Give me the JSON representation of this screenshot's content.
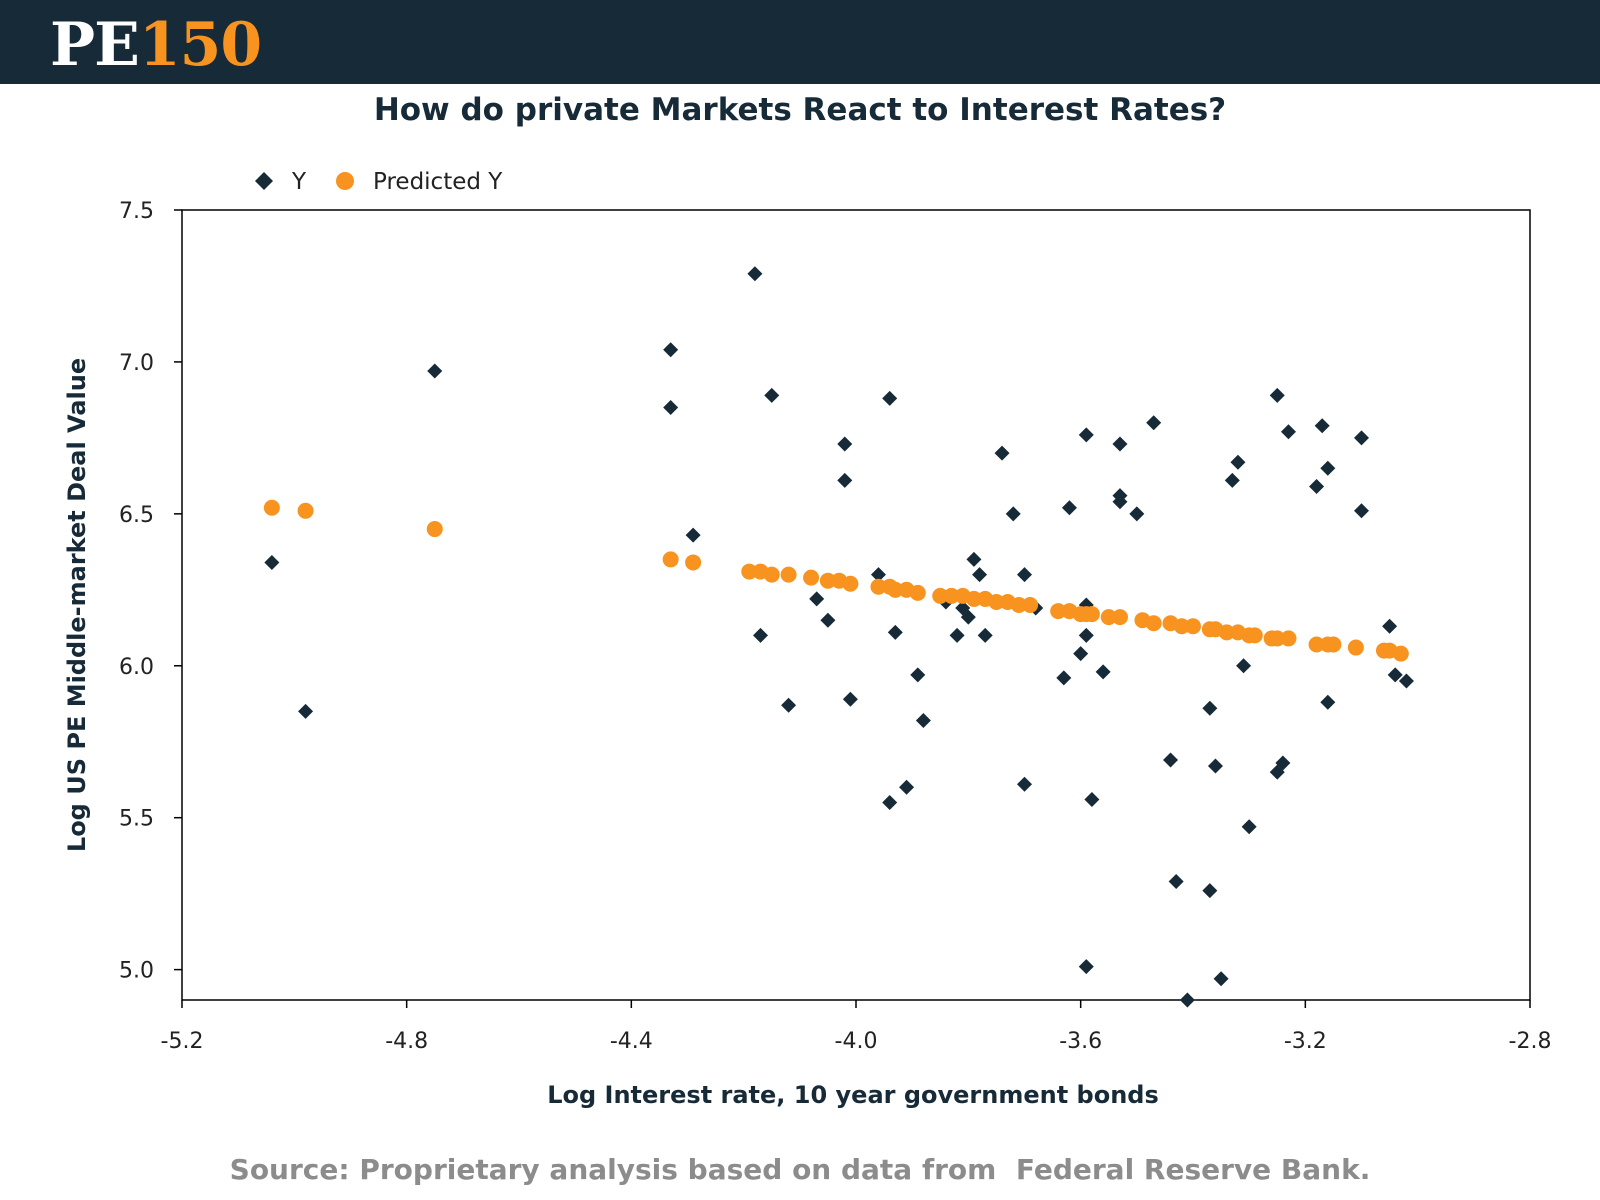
{
  "header": {
    "logo_pe": "PE",
    "logo_num": "150",
    "brand_color": "#172a38",
    "accent_color": "#f7931e"
  },
  "title": "How do private Markets React to Interest Rates?",
  "source": "Source: Proprietary analysis based on data from  Federal Reserve Bank.",
  "chart_data": {
    "type": "scatter",
    "xlabel": "Log Interest rate, 10 year government bonds",
    "ylabel": "Log US PE Middle-market Deal Value",
    "xlim": [
      -5.2,
      -2.8
    ],
    "ylim": [
      4.9,
      7.5
    ],
    "x_ticks": [
      "-5.2",
      "-4.8",
      "-4.4",
      "-4.0",
      "-3.6",
      "-3.2",
      "-2.8"
    ],
    "y_ticks": [
      "5.0",
      "5.5",
      "6.0",
      "6.5",
      "7.0",
      "7.5"
    ],
    "legend_position": "top-left",
    "grid": false,
    "series": [
      {
        "name": "Y",
        "marker": "diamond",
        "color": "#172a38",
        "points": [
          [
            -5.04,
            6.34
          ],
          [
            -4.98,
            5.85
          ],
          [
            -4.75,
            6.97
          ],
          [
            -4.33,
            7.04
          ],
          [
            -4.33,
            6.85
          ],
          [
            -4.29,
            6.43
          ],
          [
            -4.18,
            7.29
          ],
          [
            -4.15,
            6.89
          ],
          [
            -4.17,
            6.1
          ],
          [
            -4.12,
            5.87
          ],
          [
            -4.07,
            6.22
          ],
          [
            -4.05,
            6.15
          ],
          [
            -4.02,
            6.73
          ],
          [
            -4.02,
            6.61
          ],
          [
            -4.01,
            5.89
          ],
          [
            -3.94,
            6.88
          ],
          [
            -3.96,
            6.3
          ],
          [
            -3.93,
            6.11
          ],
          [
            -3.94,
            5.55
          ],
          [
            -3.91,
            5.6
          ],
          [
            -3.89,
            5.97
          ],
          [
            -3.88,
            5.82
          ],
          [
            -3.84,
            6.21
          ],
          [
            -3.82,
            6.1
          ],
          [
            -3.81,
            6.19
          ],
          [
            -3.8,
            6.16
          ],
          [
            -3.79,
            6.35
          ],
          [
            -3.78,
            6.3
          ],
          [
            -3.77,
            6.1
          ],
          [
            -3.74,
            6.7
          ],
          [
            -3.72,
            6.5
          ],
          [
            -3.7,
            6.3
          ],
          [
            -3.7,
            5.61
          ],
          [
            -3.68,
            6.19
          ],
          [
            -3.62,
            6.52
          ],
          [
            -3.63,
            5.96
          ],
          [
            -3.59,
            6.2
          ],
          [
            -3.59,
            6.76
          ],
          [
            -3.59,
            6.1
          ],
          [
            -3.6,
            6.04
          ],
          [
            -3.59,
            5.01
          ],
          [
            -3.58,
            5.56
          ],
          [
            -3.56,
            5.98
          ],
          [
            -3.53,
            6.73
          ],
          [
            -3.53,
            6.56
          ],
          [
            -3.53,
            6.54
          ],
          [
            -3.5,
            6.5
          ],
          [
            -3.47,
            6.8
          ],
          [
            -3.44,
            5.69
          ],
          [
            -3.43,
            5.29
          ],
          [
            -3.41,
            4.9
          ],
          [
            -3.37,
            5.86
          ],
          [
            -3.36,
            5.67
          ],
          [
            -3.35,
            4.97
          ],
          [
            -3.37,
            5.26
          ],
          [
            -3.33,
            6.61
          ],
          [
            -3.32,
            6.67
          ],
          [
            -3.31,
            6.0
          ],
          [
            -3.3,
            5.47
          ],
          [
            -3.25,
            6.89
          ],
          [
            -3.25,
            5.65
          ],
          [
            -3.24,
            5.68
          ],
          [
            -3.23,
            6.77
          ],
          [
            -3.18,
            6.59
          ],
          [
            -3.17,
            6.79
          ],
          [
            -3.16,
            6.65
          ],
          [
            -3.16,
            5.88
          ],
          [
            -3.1,
            6.75
          ],
          [
            -3.1,
            6.51
          ],
          [
            -3.05,
            6.13
          ],
          [
            -3.04,
            5.97
          ],
          [
            -3.02,
            5.95
          ]
        ]
      },
      {
        "name": "Predicted Y",
        "marker": "circle",
        "color": "#f7931e",
        "points": [
          [
            -5.04,
            6.52
          ],
          [
            -4.98,
            6.51
          ],
          [
            -4.75,
            6.45
          ],
          [
            -4.33,
            6.35
          ],
          [
            -4.29,
            6.34
          ],
          [
            -4.19,
            6.31
          ],
          [
            -4.17,
            6.31
          ],
          [
            -4.15,
            6.3
          ],
          [
            -4.12,
            6.3
          ],
          [
            -4.08,
            6.29
          ],
          [
            -4.05,
            6.28
          ],
          [
            -4.03,
            6.28
          ],
          [
            -4.01,
            6.27
          ],
          [
            -3.96,
            6.26
          ],
          [
            -3.94,
            6.26
          ],
          [
            -3.93,
            6.25
          ],
          [
            -3.91,
            6.25
          ],
          [
            -3.89,
            6.24
          ],
          [
            -3.85,
            6.23
          ],
          [
            -3.83,
            6.23
          ],
          [
            -3.81,
            6.23
          ],
          [
            -3.79,
            6.22
          ],
          [
            -3.77,
            6.22
          ],
          [
            -3.75,
            6.21
          ],
          [
            -3.73,
            6.21
          ],
          [
            -3.71,
            6.2
          ],
          [
            -3.69,
            6.2
          ],
          [
            -3.64,
            6.18
          ],
          [
            -3.62,
            6.18
          ],
          [
            -3.6,
            6.17
          ],
          [
            -3.59,
            6.17
          ],
          [
            -3.58,
            6.17
          ],
          [
            -3.55,
            6.16
          ],
          [
            -3.53,
            6.16
          ],
          [
            -3.49,
            6.15
          ],
          [
            -3.47,
            6.14
          ],
          [
            -3.44,
            6.14
          ],
          [
            -3.42,
            6.13
          ],
          [
            -3.4,
            6.13
          ],
          [
            -3.37,
            6.12
          ],
          [
            -3.36,
            6.12
          ],
          [
            -3.34,
            6.11
          ],
          [
            -3.32,
            6.11
          ],
          [
            -3.3,
            6.1
          ],
          [
            -3.29,
            6.1
          ],
          [
            -3.26,
            6.09
          ],
          [
            -3.25,
            6.09
          ],
          [
            -3.23,
            6.09
          ],
          [
            -3.18,
            6.07
          ],
          [
            -3.16,
            6.07
          ],
          [
            -3.15,
            6.07
          ],
          [
            -3.11,
            6.06
          ],
          [
            -3.06,
            6.05
          ],
          [
            -3.05,
            6.05
          ],
          [
            -3.03,
            6.04
          ]
        ]
      }
    ]
  }
}
